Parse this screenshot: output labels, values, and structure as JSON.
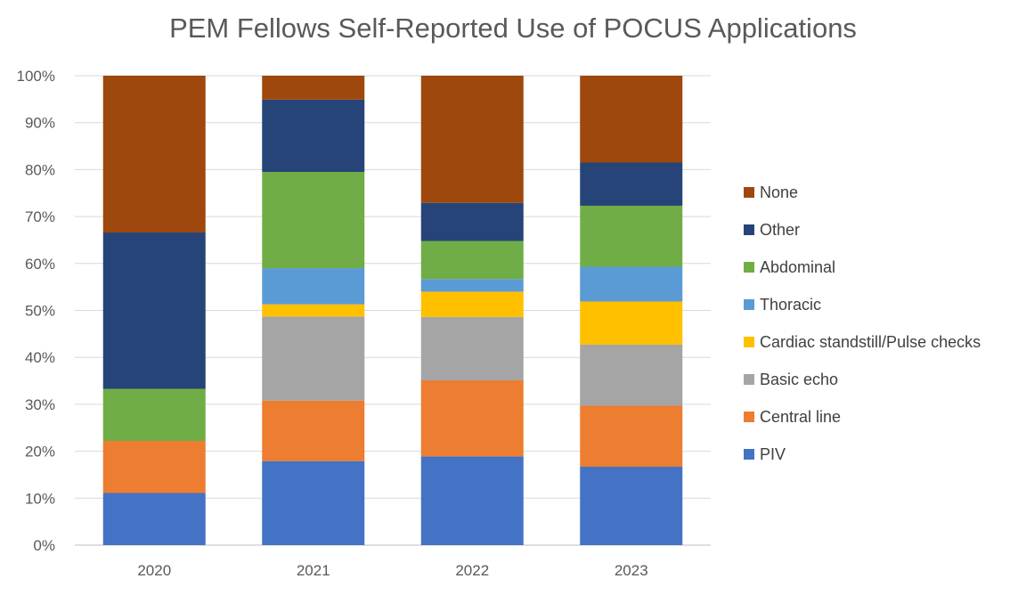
{
  "chart_data": {
    "type": "bar",
    "stacked": true,
    "percent_stacked": true,
    "title": "PEM Fellows Self-Reported Use of POCUS Applications",
    "xlabel": "",
    "ylabel": "",
    "categories": [
      "2020",
      "2021",
      "2022",
      "2023"
    ],
    "ylim": [
      0,
      100
    ],
    "yticks": [
      "0%",
      "10%",
      "20%",
      "30%",
      "40%",
      "50%",
      "60%",
      "70%",
      "80%",
      "90%",
      "100%"
    ],
    "grid": true,
    "legend_position": "right",
    "series": [
      {
        "name": "PIV",
        "color": "#4472C4",
        "values": [
          11.1,
          17.9,
          18.9,
          16.7
        ]
      },
      {
        "name": "Central line",
        "color": "#ED7D31",
        "values": [
          11.1,
          12.9,
          16.2,
          13.0
        ]
      },
      {
        "name": "Basic echo",
        "color": "#A5A5A5",
        "values": [
          0,
          17.9,
          13.5,
          13.0
        ]
      },
      {
        "name": "Cardiac standstill/Pulse checks",
        "color": "#FFC000",
        "values": [
          0,
          2.6,
          5.4,
          9.2
        ]
      },
      {
        "name": "Thoracic",
        "color": "#5B9BD5",
        "values": [
          0,
          7.7,
          2.7,
          7.4
        ]
      },
      {
        "name": "Abdominal",
        "color": "#70AD47",
        "values": [
          11.1,
          20.5,
          8.1,
          13.0
        ]
      },
      {
        "name": "Other",
        "color": "#264478",
        "values": [
          33.3,
          15.4,
          8.1,
          9.2
        ]
      },
      {
        "name": "None",
        "color": "#9E480E",
        "values": [
          33.4,
          5.1,
          27.1,
          18.5
        ]
      }
    ]
  }
}
